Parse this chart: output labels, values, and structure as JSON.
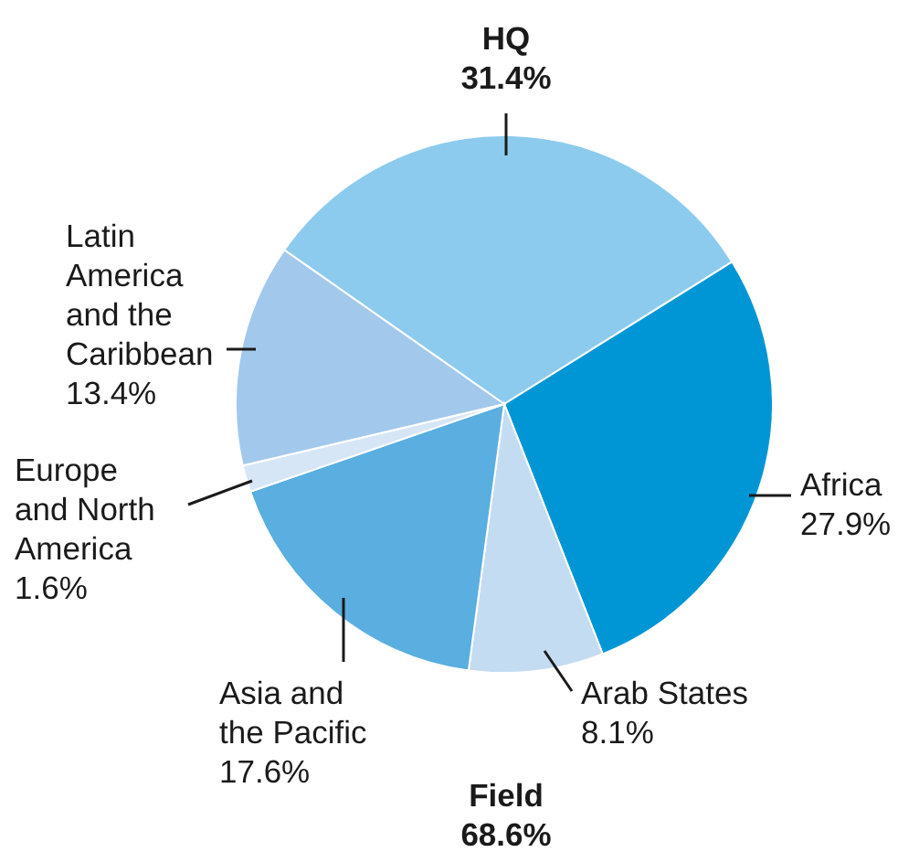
{
  "chart_data": {
    "type": "pie",
    "categories": [
      "HQ",
      "Africa",
      "Arab States",
      "Asia and the Pacific",
      "Europe and North America",
      "Latin America and the Caribbean"
    ],
    "values": [
      31.4,
      27.9,
      8.1,
      17.6,
      1.6,
      13.4
    ],
    "value_labels": [
      "31.4%",
      "27.9%",
      "8.1%",
      "17.6%",
      "1.6%",
      "13.4%"
    ],
    "colors": [
      "#8ccbed",
      "#0096d6",
      "#c4dcf2",
      "#5aaee0",
      "#d6e6f6",
      "#a2c8ec"
    ],
    "annotations": [
      "Field 68.6%"
    ]
  }
}
